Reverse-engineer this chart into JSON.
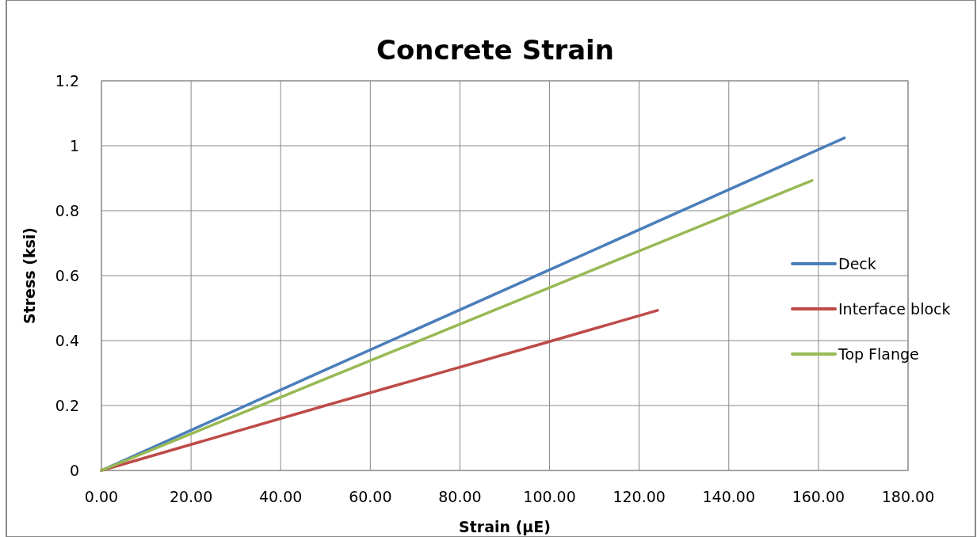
{
  "chart_data": {
    "type": "line",
    "title": "Concrete Strain",
    "xlabel": "Strain (µE)",
    "ylabel": "Stress (ksi)",
    "xlim": [
      0,
      180
    ],
    "xticks": [
      {
        "value": 0,
        "label": "0.00"
      },
      {
        "value": 20,
        "label": "20.00"
      },
      {
        "value": 40,
        "label": "40.00"
      },
      {
        "value": 60,
        "label": "60.00"
      },
      {
        "value": 80,
        "label": "80.00"
      },
      {
        "value": 100,
        "label": "100.00"
      },
      {
        "value": 120,
        "label": "120.00"
      },
      {
        "value": 140,
        "label": "140.00"
      },
      {
        "value": 160,
        "label": "160.00"
      },
      {
        "value": 180,
        "label": "180.00"
      }
    ],
    "ylim": [
      0,
      1.2
    ],
    "yticks": [
      0,
      0.2,
      0.4,
      0.6,
      0.8,
      1,
      1.2
    ],
    "grid": true,
    "legend": "right",
    "marker": "none",
    "line_style": "solid",
    "series": [
      {
        "name": "Deck",
        "color": "#4a7ebb",
        "x": [
          0,
          50,
          100,
          165.8
        ],
        "values": [
          0,
          0.31,
          0.618,
          1.024
        ]
      },
      {
        "name": "Interface block",
        "color": "#be4b48",
        "x": [
          0,
          50,
          100,
          124.1
        ],
        "values": [
          0,
          0.2,
          0.397,
          0.493
        ]
      },
      {
        "name": "Top Flange",
        "color": "#98b954",
        "x": [
          0,
          50,
          100,
          158.6
        ],
        "values": [
          0,
          0.282,
          0.563,
          0.893
        ]
      }
    ]
  }
}
